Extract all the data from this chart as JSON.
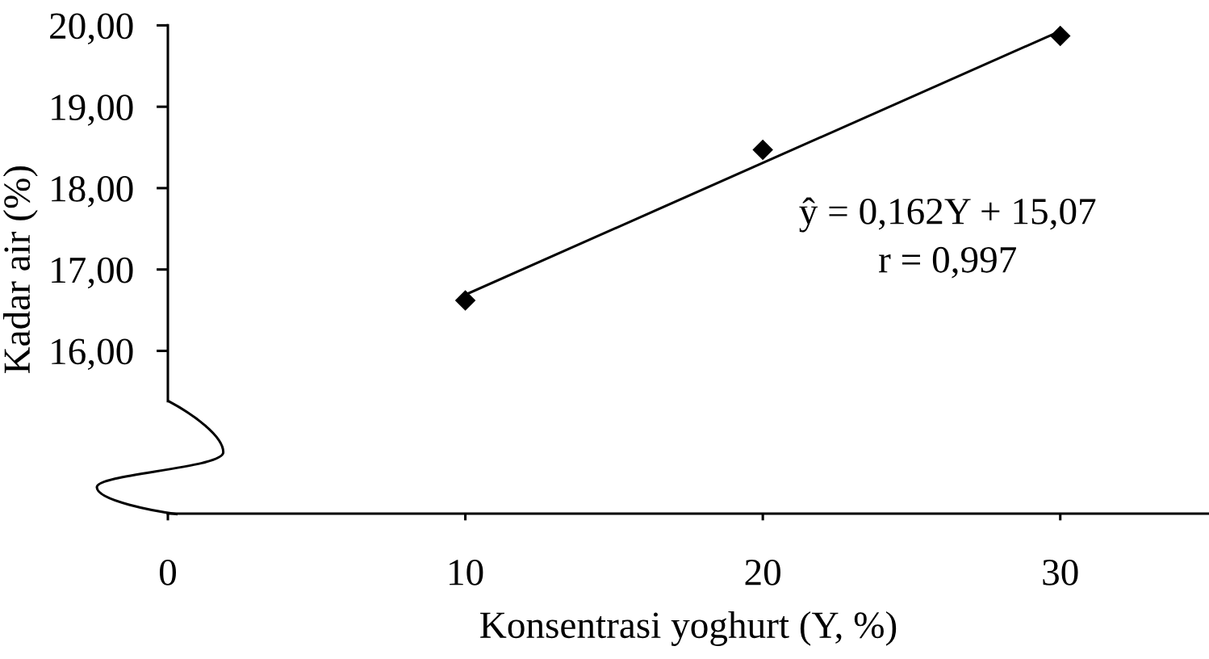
{
  "chart_data": {
    "type": "scatter",
    "xlabel": "Konsentrasi yoghurt (Y, %)",
    "ylabel": "Kadar air (%)",
    "xlim": [
      0,
      35
    ],
    "xticks": [
      0,
      10,
      20,
      30
    ],
    "ylim": [
      14,
      20
    ],
    "yticks": [
      {
        "value": 16,
        "label": "16,00"
      },
      {
        "value": 17,
        "label": "17,00"
      },
      {
        "value": 18,
        "label": "18,00"
      },
      {
        "value": 19,
        "label": "19,00"
      },
      {
        "value": 20,
        "label": "20,00"
      }
    ],
    "series": [
      {
        "color": "#000000",
        "marker": "diamond",
        "x": [
          10,
          20,
          30
        ],
        "values": [
          16.62,
          18.47,
          19.87
        ]
      },
      {
        "type": "line",
        "color": "#000000",
        "marker": "none",
        "line_style": "solid",
        "x": [
          10,
          30
        ],
        "values": [
          16.69,
          19.93
        ]
      }
    ],
    "annotations": [
      "ŷ = 0,162Y + 15,07",
      "r = 0,997"
    ]
  }
}
